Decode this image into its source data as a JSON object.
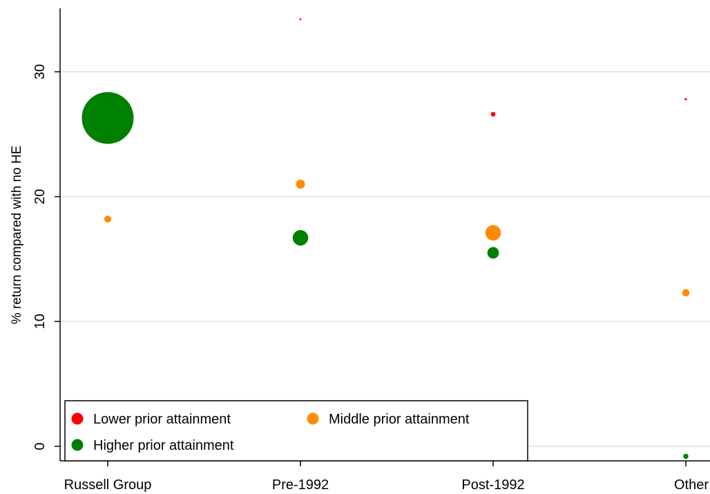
{
  "chart_data": {
    "type": "scatter",
    "title": "",
    "xlabel": "",
    "ylabel": "% return compared with no HE",
    "categories": [
      "Russell Group",
      "Pre-1992",
      "Post-1992",
      "Other"
    ],
    "ylim": [
      -1.8,
      35
    ],
    "yticks": [
      0,
      10,
      20,
      30
    ],
    "grid": true,
    "legend_position": "bottom-left",
    "series": [
      {
        "name": "Lower prior attainment",
        "color": "#ff0000",
        "values": [
          null,
          34.2,
          26.6,
          27.8
        ],
        "weights": [
          null,
          1,
          8,
          2
        ]
      },
      {
        "name": "Middle prior attainment",
        "color": "#ff8c00",
        "values": [
          18.2,
          21.0,
          17.1,
          12.3
        ],
        "weights": [
          18,
          30,
          90,
          20
        ]
      },
      {
        "name": "Higher prior attainment",
        "color": "#008000",
        "values": [
          26.3,
          16.7,
          15.5,
          -0.8
        ],
        "weights": [
          1000,
          90,
          50,
          10
        ]
      }
    ]
  }
}
